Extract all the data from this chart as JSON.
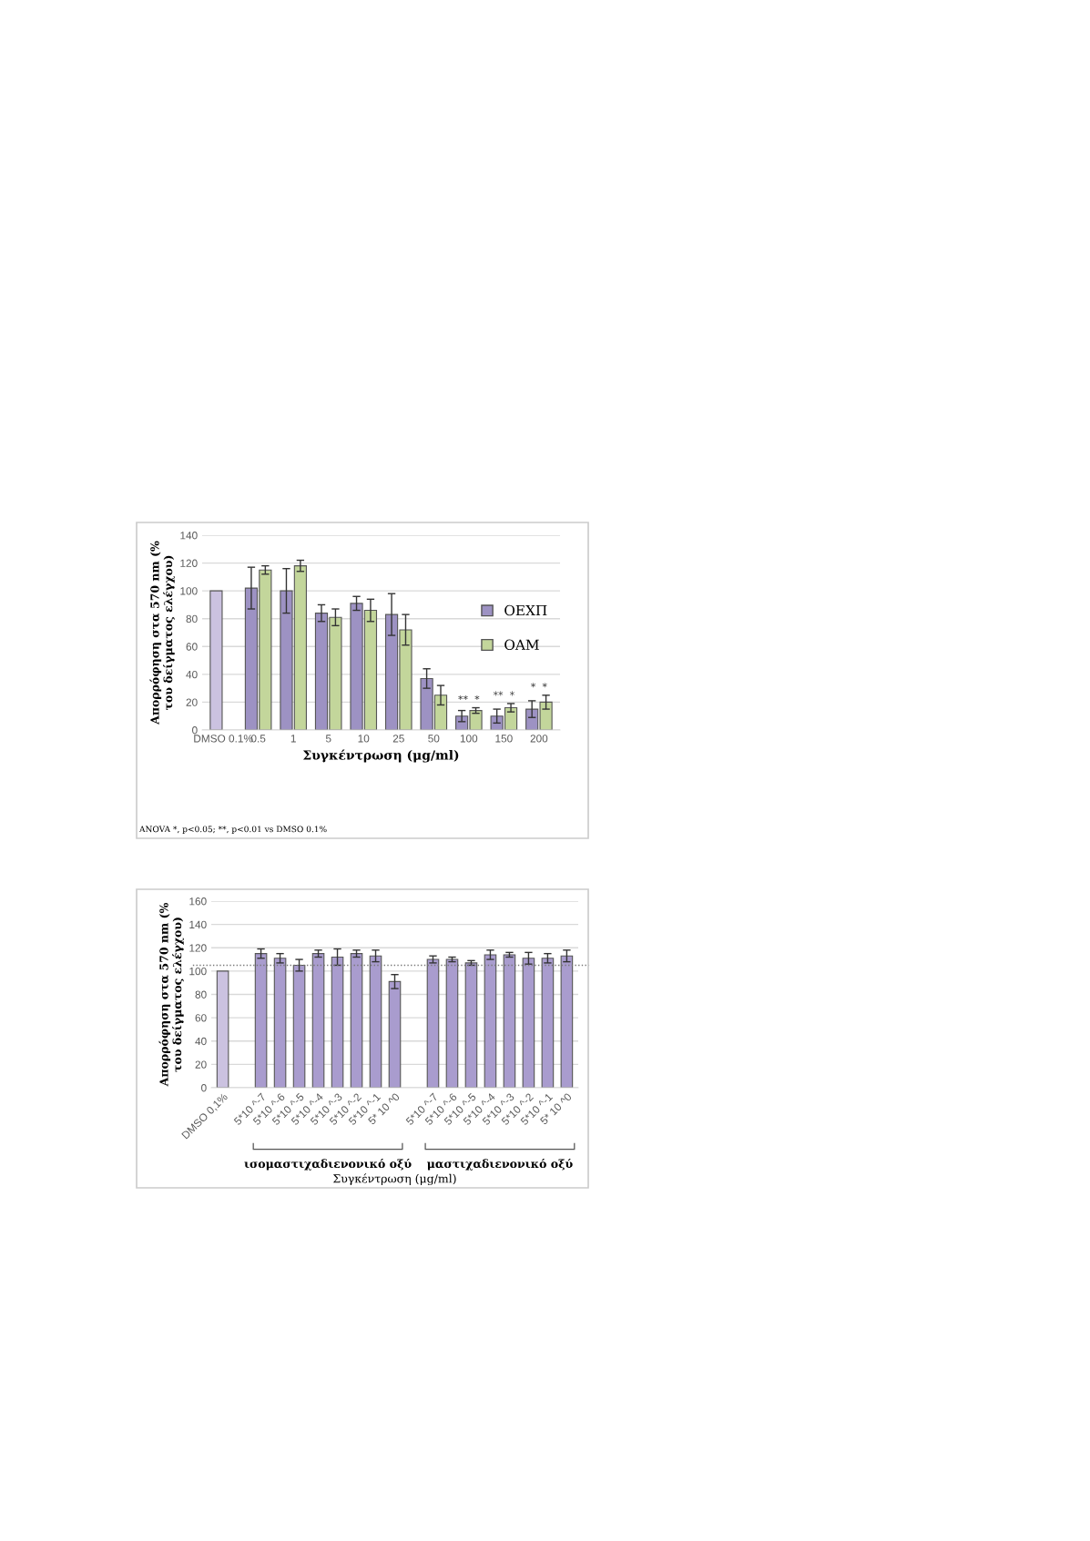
{
  "chart_data": [
    {
      "type": "bar",
      "xlabel": "Συγκέντρωση (μg/ml)",
      "ylabel": "Απορρόφηση στα 570 nm (% του δείγματος ελέγχου)",
      "categories": [
        "DMSO 0.1%",
        "0.5",
        "1",
        "5",
        "10",
        "25",
        "50",
        "100",
        "150",
        "200"
      ],
      "series": [
        {
          "name": "ΟΕΧΠ",
          "color": "#9d92c3",
          "colors": [
            "#cbc2e0",
            "#9d92c3",
            "#9d92c3",
            "#9d92c3",
            "#9d92c3",
            "#9d92c3",
            "#9d92c3",
            "#9d92c3",
            "#9d92c3",
            "#9d92c3"
          ],
          "values": [
            100,
            102,
            100,
            84,
            91,
            83,
            37,
            10,
            10,
            15
          ],
          "errors": [
            null,
            15,
            16,
            6,
            5,
            15,
            7,
            4,
            5,
            6
          ]
        },
        {
          "name": "ΟΑΜ",
          "color": "#c3d69b",
          "values": [
            null,
            115,
            118,
            81,
            86,
            72,
            25,
            14,
            16,
            20
          ],
          "errors": [
            null,
            3,
            4,
            6,
            8,
            11,
            7,
            2,
            3,
            5
          ]
        }
      ],
      "ylim": [
        0,
        140
      ],
      "yticks": [
        0,
        20,
        40,
        60,
        80,
        100,
        120,
        140
      ],
      "grid": "y",
      "legend": "right",
      "annotations": [
        {
          "text": "**  *",
          "x": "100",
          "y": 18
        },
        {
          "text": "**  *",
          "x": "150",
          "y": 21
        },
        {
          "text": "*  *",
          "x": "200",
          "y": 27
        },
        "ANOVA *, p<0.05; **, p<0.01 vs DMSO 0.1%"
      ]
    },
    {
      "type": "bar",
      "xlabel": "Συγκέντρωση (μg/ml)",
      "ylabel": "Απορρόφηση στα 570 nm (% του δείγματος ελέγχου)",
      "categories": [
        "DMSO 0,1%",
        null,
        "5*10 ^-7",
        "5*10 ^-6",
        "5*10 ^-5",
        "5*10 ^-4",
        "5*10 ^-3",
        "5*10 ^-2",
        "5*10 ^-1",
        "5* 10 ^0",
        null,
        "5*10 ^-7",
        "5*10 ^-6",
        "5*10 ^-5",
        "5*10 ^-4",
        "5*10 ^-3",
        "5*10 ^-2",
        "5*10 ^-1",
        "5* 10 ^0"
      ],
      "values": [
        100,
        null,
        115,
        111,
        105,
        115,
        112,
        115,
        113,
        91,
        null,
        110,
        110,
        107,
        114,
        114,
        111,
        111,
        113
      ],
      "errors": [
        null,
        null,
        4,
        4,
        5,
        3,
        7,
        3,
        5,
        6,
        null,
        3,
        2,
        2,
        4,
        2,
        5,
        4,
        5
      ],
      "colors": [
        "#cbc2e0",
        null,
        "#a99cce",
        "#a99cce",
        "#a99cce",
        "#a99cce",
        "#a99cce",
        "#a99cce",
        "#a99cce",
        "#a99cce",
        null,
        "#a99cce",
        "#a99cce",
        "#a99cce",
        "#a99cce",
        "#a99cce",
        "#a99cce",
        "#a99cce",
        "#a99cce"
      ],
      "ylim": [
        0,
        160
      ],
      "yticks": [
        0,
        20,
        40,
        60,
        80,
        100,
        120,
        140,
        160
      ],
      "grid": "y",
      "ref_lines": [
        {
          "axis": "y",
          "value": 105,
          "line_style": "dotted",
          "color": "#777777"
        }
      ],
      "annotations": [
        "ισομαστιχαδιενονικό οξύ",
        "μαστιχαδιενονικό οξύ"
      ]
    }
  ]
}
